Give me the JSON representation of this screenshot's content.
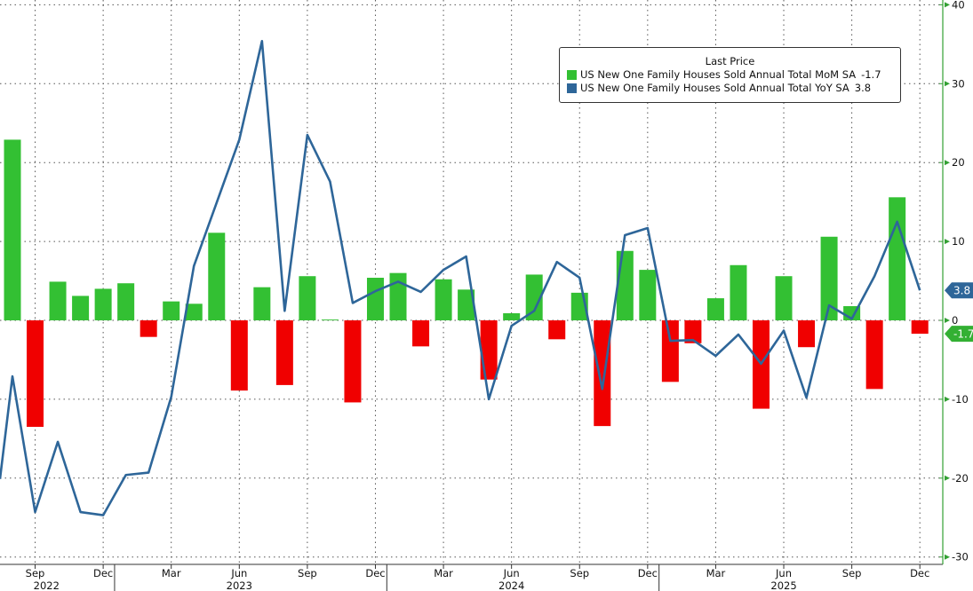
{
  "chart_data": {
    "type": "bar+line",
    "title": "",
    "legend_title": "Last Price",
    "legend_position": "top-right",
    "x": [
      "Aug 2022",
      "Sep 2022",
      "Oct 2022",
      "Nov 2022",
      "Dec 2022",
      "Jan 2023",
      "Feb 2023",
      "Mar 2023",
      "Apr 2023",
      "May 2023",
      "Jun 2023",
      "Jul 2023",
      "Aug 2023",
      "Sep 2023",
      "Oct 2023",
      "Nov 2023",
      "Dec 2023",
      "Jan 2024",
      "Feb 2024",
      "Mar 2024",
      "Apr 2024",
      "May 2024",
      "Jun 2024",
      "Jul 2024",
      "Aug 2024",
      "Sep 2024",
      "Oct 2024",
      "Nov 2024",
      "Dec 2024",
      "Jan 2025",
      "Feb 2025",
      "Mar 2025",
      "Apr 2025",
      "May 2025",
      "Jun 2025",
      "Jul 2025",
      "Aug 2025",
      "Sep 2025",
      "Oct 2025",
      "Nov 2025",
      "Dec 2025"
    ],
    "x_tick_labels": [
      {
        "month_index": 1,
        "label": "Sep"
      },
      {
        "month_index": 4,
        "label": "Dec"
      },
      {
        "month_index": 7,
        "label": "Mar"
      },
      {
        "month_index": 10,
        "label": "Jun"
      },
      {
        "month_index": 13,
        "label": "Sep"
      },
      {
        "month_index": 16,
        "label": "Dec"
      },
      {
        "month_index": 19,
        "label": "Mar"
      },
      {
        "month_index": 22,
        "label": "Jun"
      },
      {
        "month_index": 25,
        "label": "Sep"
      },
      {
        "month_index": 28,
        "label": "Dec"
      },
      {
        "month_index": 31,
        "label": "Mar"
      },
      {
        "month_index": 34,
        "label": "Jun"
      },
      {
        "month_index": 37,
        "label": "Sep"
      },
      {
        "month_index": 40,
        "label": "Dec"
      }
    ],
    "year_labels": [
      {
        "month_index": 1.5,
        "label": "2022"
      },
      {
        "month_index": 10,
        "label": "2023"
      },
      {
        "month_index": 22,
        "label": "2024"
      },
      {
        "month_index": 34,
        "label": "2025"
      }
    ],
    "ylim": [
      -31,
      40
    ],
    "y_ticks": [
      40,
      30,
      20,
      10,
      0,
      -10,
      -20,
      -30
    ],
    "grid": true,
    "series": [
      {
        "name": "US New One Family Houses Sold Annual Total MoM SA",
        "last": "-1.7",
        "type": "bar",
        "color": "#33c033",
        "neg_color": "#f00000",
        "values": [
          22.9,
          -13.5,
          4.9,
          3.1,
          4.0,
          4.7,
          -2.1,
          2.4,
          2.1,
          11.1,
          -8.9,
          4.2,
          -8.2,
          5.6,
          0.1,
          -10.4,
          5.4,
          6.0,
          -3.3,
          5.2,
          3.9,
          -7.5,
          0.9,
          5.8,
          -2.4,
          3.5,
          -13.4,
          8.8,
          6.4,
          -7.8,
          -2.9,
          2.8,
          7.0,
          -11.2,
          5.6,
          -3.4,
          10.6,
          1.8,
          -8.7,
          15.6,
          -1.7
        ]
      },
      {
        "name": "US New One Family Houses Sold Annual Total YoY SA",
        "last": "3.8",
        "type": "line",
        "color": "#2e6699",
        "start_value_jul_2022": -20.1,
        "values": [
          -7.1,
          -24.3,
          -15.4,
          -24.3,
          -24.7,
          -19.6,
          -19.3,
          -9.7,
          6.9,
          14.9,
          22.9,
          35.4,
          1.2,
          23.5,
          17.6,
          2.2,
          3.7,
          4.9,
          3.6,
          6.4,
          8.1,
          -10.0,
          -0.7,
          1.2,
          7.4,
          5.4,
          -8.7,
          10.8,
          11.7,
          -2.6,
          -2.5,
          -4.5,
          -1.8,
          -5.5,
          -1.3,
          -9.8,
          1.9,
          0.2,
          5.6,
          12.5,
          3.8
        ]
      }
    ]
  }
}
